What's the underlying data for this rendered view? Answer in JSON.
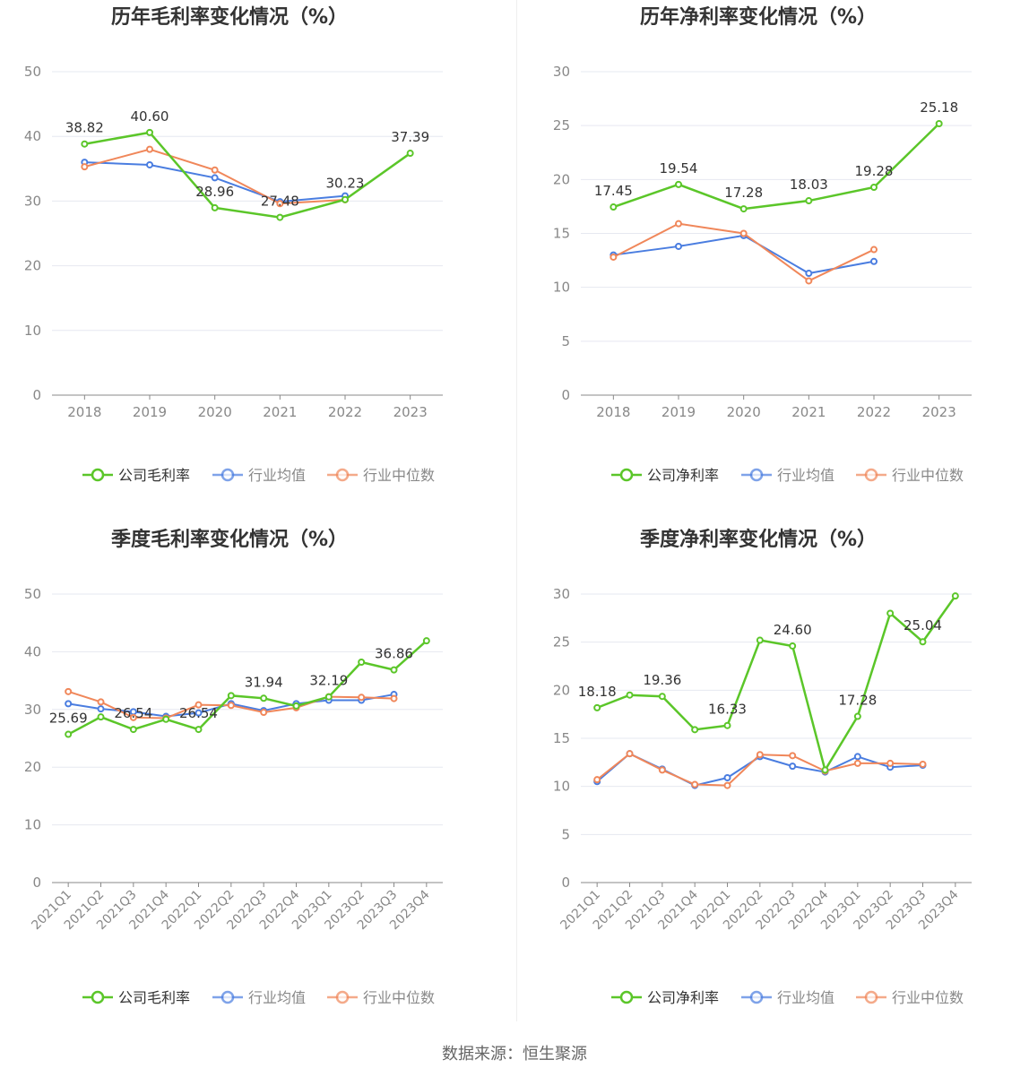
{
  "colors": {
    "company": "#5bc629",
    "avg": "#4a7de0",
    "median": "#f0875a",
    "grid": "#e6e8f0",
    "axis": "#888888",
    "title": "#333333",
    "label": "#333333"
  },
  "footer": {
    "source": "数据来源：恒生聚源"
  },
  "chart_data": [
    {
      "type": "line",
      "title": "历年毛利率变化情况（%）",
      "categories": [
        "2018",
        "2019",
        "2020",
        "2021",
        "2022",
        "2023"
      ],
      "ylim": [
        0,
        50
      ],
      "yticks": [
        "0",
        "10",
        "20",
        "30",
        "40",
        "50"
      ],
      "grid": true,
      "legend": "bottom",
      "rotate_x": false,
      "series": [
        {
          "name": "公司毛利率",
          "color": "#5bc629",
          "values": [
            38.82,
            40.6,
            28.96,
            27.48,
            30.23,
            37.39
          ],
          "labels": [
            "38.82",
            "40.60",
            "28.96",
            "27.48",
            "30.23",
            "37.39"
          ]
        },
        {
          "name": "行业均值",
          "color": "#4a7de0",
          "values": [
            36.0,
            35.6,
            33.6,
            29.9,
            30.8,
            null
          ],
          "labels": []
        },
        {
          "name": "行业中位数",
          "color": "#f0875a",
          "values": [
            35.3,
            38.0,
            34.8,
            29.6,
            30.2,
            null
          ],
          "labels": []
        }
      ]
    },
    {
      "type": "line",
      "title": "历年净利率变化情况（%）",
      "categories": [
        "2018",
        "2019",
        "2020",
        "2021",
        "2022",
        "2023"
      ],
      "ylim": [
        0,
        30
      ],
      "yticks": [
        "0",
        "5",
        "10",
        "15",
        "20",
        "25",
        "30"
      ],
      "grid": true,
      "legend": "bottom",
      "rotate_x": false,
      "series": [
        {
          "name": "公司净利率",
          "color": "#5bc629",
          "values": [
            17.45,
            19.54,
            17.28,
            18.03,
            19.28,
            25.18
          ],
          "labels": [
            "17.45",
            "19.54",
            "17.28",
            "18.03",
            "19.28",
            "25.18"
          ]
        },
        {
          "name": "行业均值",
          "color": "#4a7de0",
          "values": [
            13.0,
            13.8,
            14.8,
            11.3,
            12.4,
            null
          ],
          "labels": []
        },
        {
          "name": "行业中位数",
          "color": "#f0875a",
          "values": [
            12.8,
            15.9,
            15.0,
            10.6,
            13.5,
            null
          ],
          "labels": []
        }
      ]
    },
    {
      "type": "line",
      "title": "季度毛利率变化情况（%）",
      "categories": [
        "2021Q1",
        "2021Q2",
        "2021Q3",
        "2021Q4",
        "2022Q1",
        "2022Q2",
        "2022Q3",
        "2022Q4",
        "2023Q1",
        "2023Q2",
        "2023Q3",
        "2023Q4"
      ],
      "ylim": [
        0,
        50
      ],
      "yticks": [
        "0",
        "10",
        "20",
        "30",
        "40",
        "50"
      ],
      "grid": true,
      "legend": "bottom",
      "rotate_x": true,
      "series": [
        {
          "name": "公司毛利率",
          "color": "#5bc629",
          "values": [
            25.69,
            28.7,
            26.54,
            28.3,
            26.54,
            32.4,
            31.94,
            30.6,
            32.19,
            38.2,
            36.86,
            41.9
          ],
          "labels": [
            "25.69",
            "",
            "26.54",
            "",
            "26.54",
            "",
            "31.94",
            "",
            "32.19",
            "",
            "36.86",
            ""
          ]
        },
        {
          "name": "行业均值",
          "color": "#4a7de0",
          "values": [
            31.0,
            30.1,
            29.6,
            28.8,
            29.4,
            31.0,
            29.8,
            31.0,
            31.6,
            31.6,
            32.6,
            null
          ],
          "labels": []
        },
        {
          "name": "行业中位数",
          "color": "#f0875a",
          "values": [
            33.1,
            31.3,
            28.6,
            28.5,
            30.8,
            30.7,
            29.5,
            30.3,
            32.2,
            32.1,
            31.9,
            null
          ],
          "labels": []
        }
      ]
    },
    {
      "type": "line",
      "title": "季度净利率变化情况（%）",
      "categories": [
        "2021Q1",
        "2021Q2",
        "2021Q3",
        "2021Q4",
        "2022Q1",
        "2022Q2",
        "2022Q3",
        "2022Q4",
        "2023Q1",
        "2023Q2",
        "2023Q3",
        "2023Q4"
      ],
      "ylim": [
        0,
        30
      ],
      "yticks": [
        "0",
        "5",
        "10",
        "15",
        "20",
        "25",
        "30"
      ],
      "grid": true,
      "legend": "bottom",
      "rotate_x": true,
      "series": [
        {
          "name": "公司净利率",
          "color": "#5bc629",
          "values": [
            18.18,
            19.5,
            19.36,
            15.9,
            16.33,
            25.2,
            24.6,
            11.7,
            17.28,
            28.0,
            25.04,
            29.8
          ],
          "labels": [
            "18.18",
            "",
            "19.36",
            "",
            "16.33",
            "",
            "24.60",
            "",
            "17.28",
            "",
            "25.04",
            ""
          ]
        },
        {
          "name": "行业均值",
          "color": "#4a7de0",
          "values": [
            10.5,
            13.4,
            11.8,
            10.1,
            10.9,
            13.1,
            12.1,
            11.5,
            13.1,
            12.0,
            12.2,
            null
          ],
          "labels": []
        },
        {
          "name": "行业中位数",
          "color": "#f0875a",
          "values": [
            10.7,
            13.4,
            11.7,
            10.2,
            10.1,
            13.3,
            13.2,
            11.6,
            12.4,
            12.4,
            12.3,
            null
          ],
          "labels": []
        }
      ]
    }
  ]
}
